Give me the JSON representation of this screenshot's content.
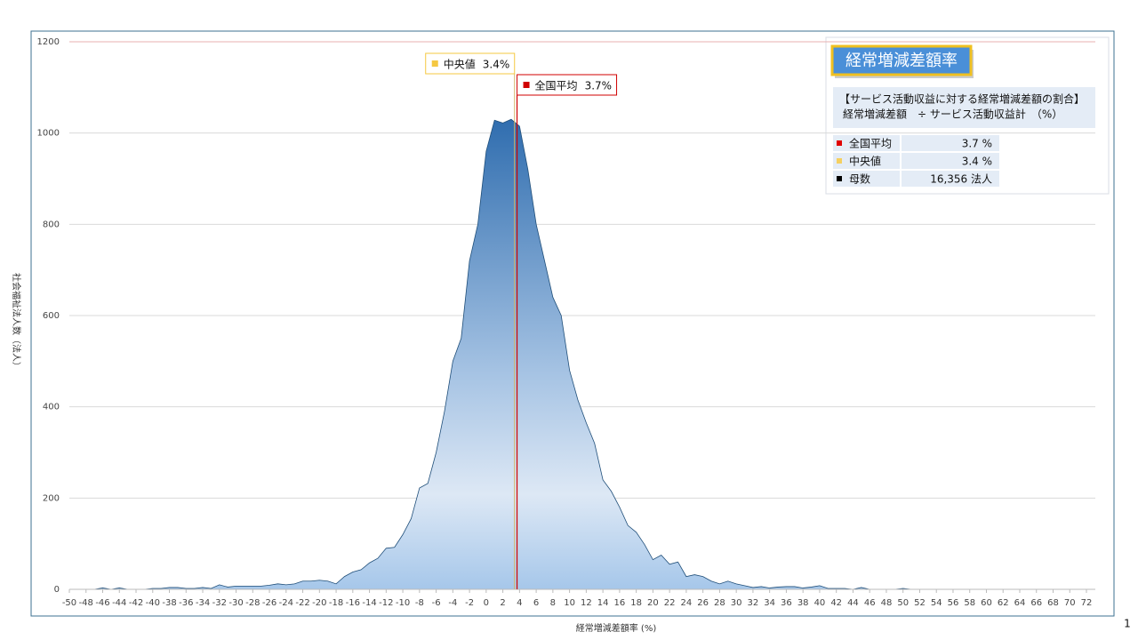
{
  "chart_data": {
    "type": "area",
    "x_label": "経常増減差額率 (%)",
    "y_label": "社会福祉法人数（法人）",
    "x": [
      -50,
      -49,
      -48,
      -47,
      -46,
      -45,
      -44,
      -43,
      -42,
      -41,
      -40,
      -39,
      -38,
      -37,
      -36,
      -35,
      -34,
      -33,
      -32,
      -31,
      -30,
      -29,
      -28,
      -27,
      -26,
      -25,
      -24,
      -23,
      -22,
      -21,
      -20,
      -19,
      -18,
      -17,
      -16,
      -15,
      -14,
      -13,
      -12,
      -11,
      -10,
      -9,
      -8,
      -7,
      -6,
      -5,
      -4,
      -3,
      -2,
      -1,
      0,
      1,
      2,
      3,
      4,
      5,
      6,
      7,
      8,
      9,
      10,
      11,
      12,
      13,
      14,
      15,
      16,
      17,
      18,
      19,
      20,
      21,
      22,
      23,
      24,
      25,
      26,
      27,
      28,
      29,
      30,
      31,
      32,
      33,
      34,
      35,
      36,
      37,
      38,
      39,
      40,
      41,
      42,
      43,
      44,
      45,
      46,
      47,
      48,
      49,
      50,
      51,
      52,
      53,
      54,
      55,
      56,
      57,
      58,
      59,
      60,
      61,
      62,
      63,
      64,
      65,
      66,
      67,
      68,
      69,
      70,
      71,
      72
    ],
    "series": [
      {
        "name": null,
        "color": "#2f6eaf",
        "values": [
          0,
          0,
          0,
          0,
          3,
          0,
          3,
          0,
          0,
          0,
          2,
          2,
          4,
          4,
          2,
          2,
          4,
          2,
          10,
          5,
          7,
          7,
          7,
          7,
          9,
          12,
          10,
          12,
          18,
          18,
          20,
          18,
          12,
          28,
          38,
          43,
          58,
          68,
          90,
          92,
          120,
          155,
          222,
          232,
          300,
          390,
          500,
          550,
          720,
          800,
          960,
          1028,
          1022,
          1030,
          1015,
          920,
          800,
          720,
          640,
          600,
          480,
          415,
          365,
          320,
          240,
          215,
          180,
          140,
          125,
          98,
          65,
          75,
          55,
          60,
          28,
          32,
          28,
          18,
          12,
          18,
          12,
          8,
          4,
          6,
          3,
          5,
          6,
          6,
          3,
          5,
          8,
          2,
          2,
          2,
          0,
          4,
          0,
          0,
          0,
          0,
          2,
          0,
          0,
          0,
          0,
          0,
          0,
          0,
          0,
          0,
          0,
          0,
          0,
          0,
          0,
          0,
          0,
          0,
          0,
          0,
          0,
          0,
          0
        ]
      }
    ],
    "xlim": [
      -50,
      72
    ],
    "xticks": [
      -50,
      -48,
      -46,
      -44,
      -42,
      -40,
      -38,
      -36,
      -34,
      -32,
      -30,
      -28,
      -26,
      -24,
      -22,
      -20,
      -18,
      -16,
      -14,
      -12,
      -10,
      -8,
      -6,
      -4,
      -2,
      0,
      2,
      4,
      6,
      8,
      10,
      12,
      14,
      16,
      18,
      20,
      22,
      24,
      26,
      28,
      30,
      32,
      34,
      36,
      38,
      40,
      42,
      44,
      46,
      48,
      50,
      52,
      54,
      56,
      58,
      60,
      62,
      64,
      66,
      68,
      70,
      72
    ],
    "ylim": [
      0,
      1200
    ],
    "yticks": [
      0,
      200,
      400,
      600,
      800,
      1000,
      1200
    ],
    "grid": true,
    "annotations": [
      {
        "name": "中央値",
        "value": 3.4,
        "label": "3.4%",
        "color": "#f5c842"
      },
      {
        "name": "全国平均",
        "value": 3.7,
        "label": "3.7%",
        "color": "#d00000"
      }
    ]
  },
  "info_box": {
    "title": "経常増減差額率",
    "description": [
      "【サービス活動収益に対する経常増減差額の割合】",
      "経常増減差額　÷ サービス活動収益計　（%）"
    ],
    "rows": [
      {
        "label": "全国平均",
        "value": "3.7 %",
        "color": "#e00000"
      },
      {
        "label": "中央値",
        "value": "3.4 %",
        "color": "#f5d060"
      },
      {
        "label": "母数",
        "value": "16,356 法人",
        "color": "#000000"
      }
    ]
  },
  "page_number": "1"
}
